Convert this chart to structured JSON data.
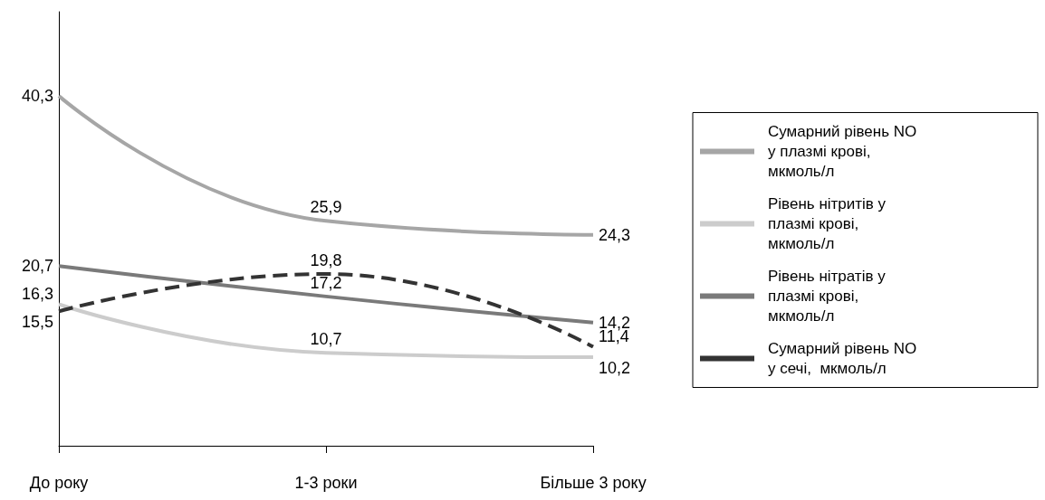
{
  "chart_data": {
    "type": "line",
    "categories": [
      "До року",
      "1-3 роки",
      "Більше 3 року"
    ],
    "legend": "right",
    "marker": "none",
    "tick_labels": "x",
    "series": [
      {
        "name": "Сумарний рівень NO у плазмі крові, мкмоль/л",
        "color": "#a6a6a6",
        "values": [
          40.3,
          25.9,
          24.3
        ],
        "value_labels": [
          "40,3",
          "25,9",
          "24,3"
        ],
        "line_style": "solid"
      },
      {
        "name": "Рівень нітритів у плазмі крові, мкмоль/л",
        "color": "#cccccc",
        "values": [
          16.3,
          10.7,
          10.2
        ],
        "value_labels": [
          "16,3",
          "10,7",
          "10,2"
        ],
        "line_style": "solid"
      },
      {
        "name": "Рівень нітратів у плазмі крові, мкмоль/л",
        "color": "#7a7a7a",
        "values": [
          20.7,
          17.2,
          14.2
        ],
        "value_labels": [
          "20,7",
          "17,2",
          "14,2"
        ],
        "line_style": "solid"
      },
      {
        "name": "Сумарний рівень NO у сечі,  мкмоль/л",
        "color": "#333333",
        "values": [
          15.5,
          19.8,
          11.4
        ],
        "value_labels": [
          "15,5",
          "19,8",
          "11,4"
        ],
        "line_style": "dashed"
      }
    ]
  }
}
